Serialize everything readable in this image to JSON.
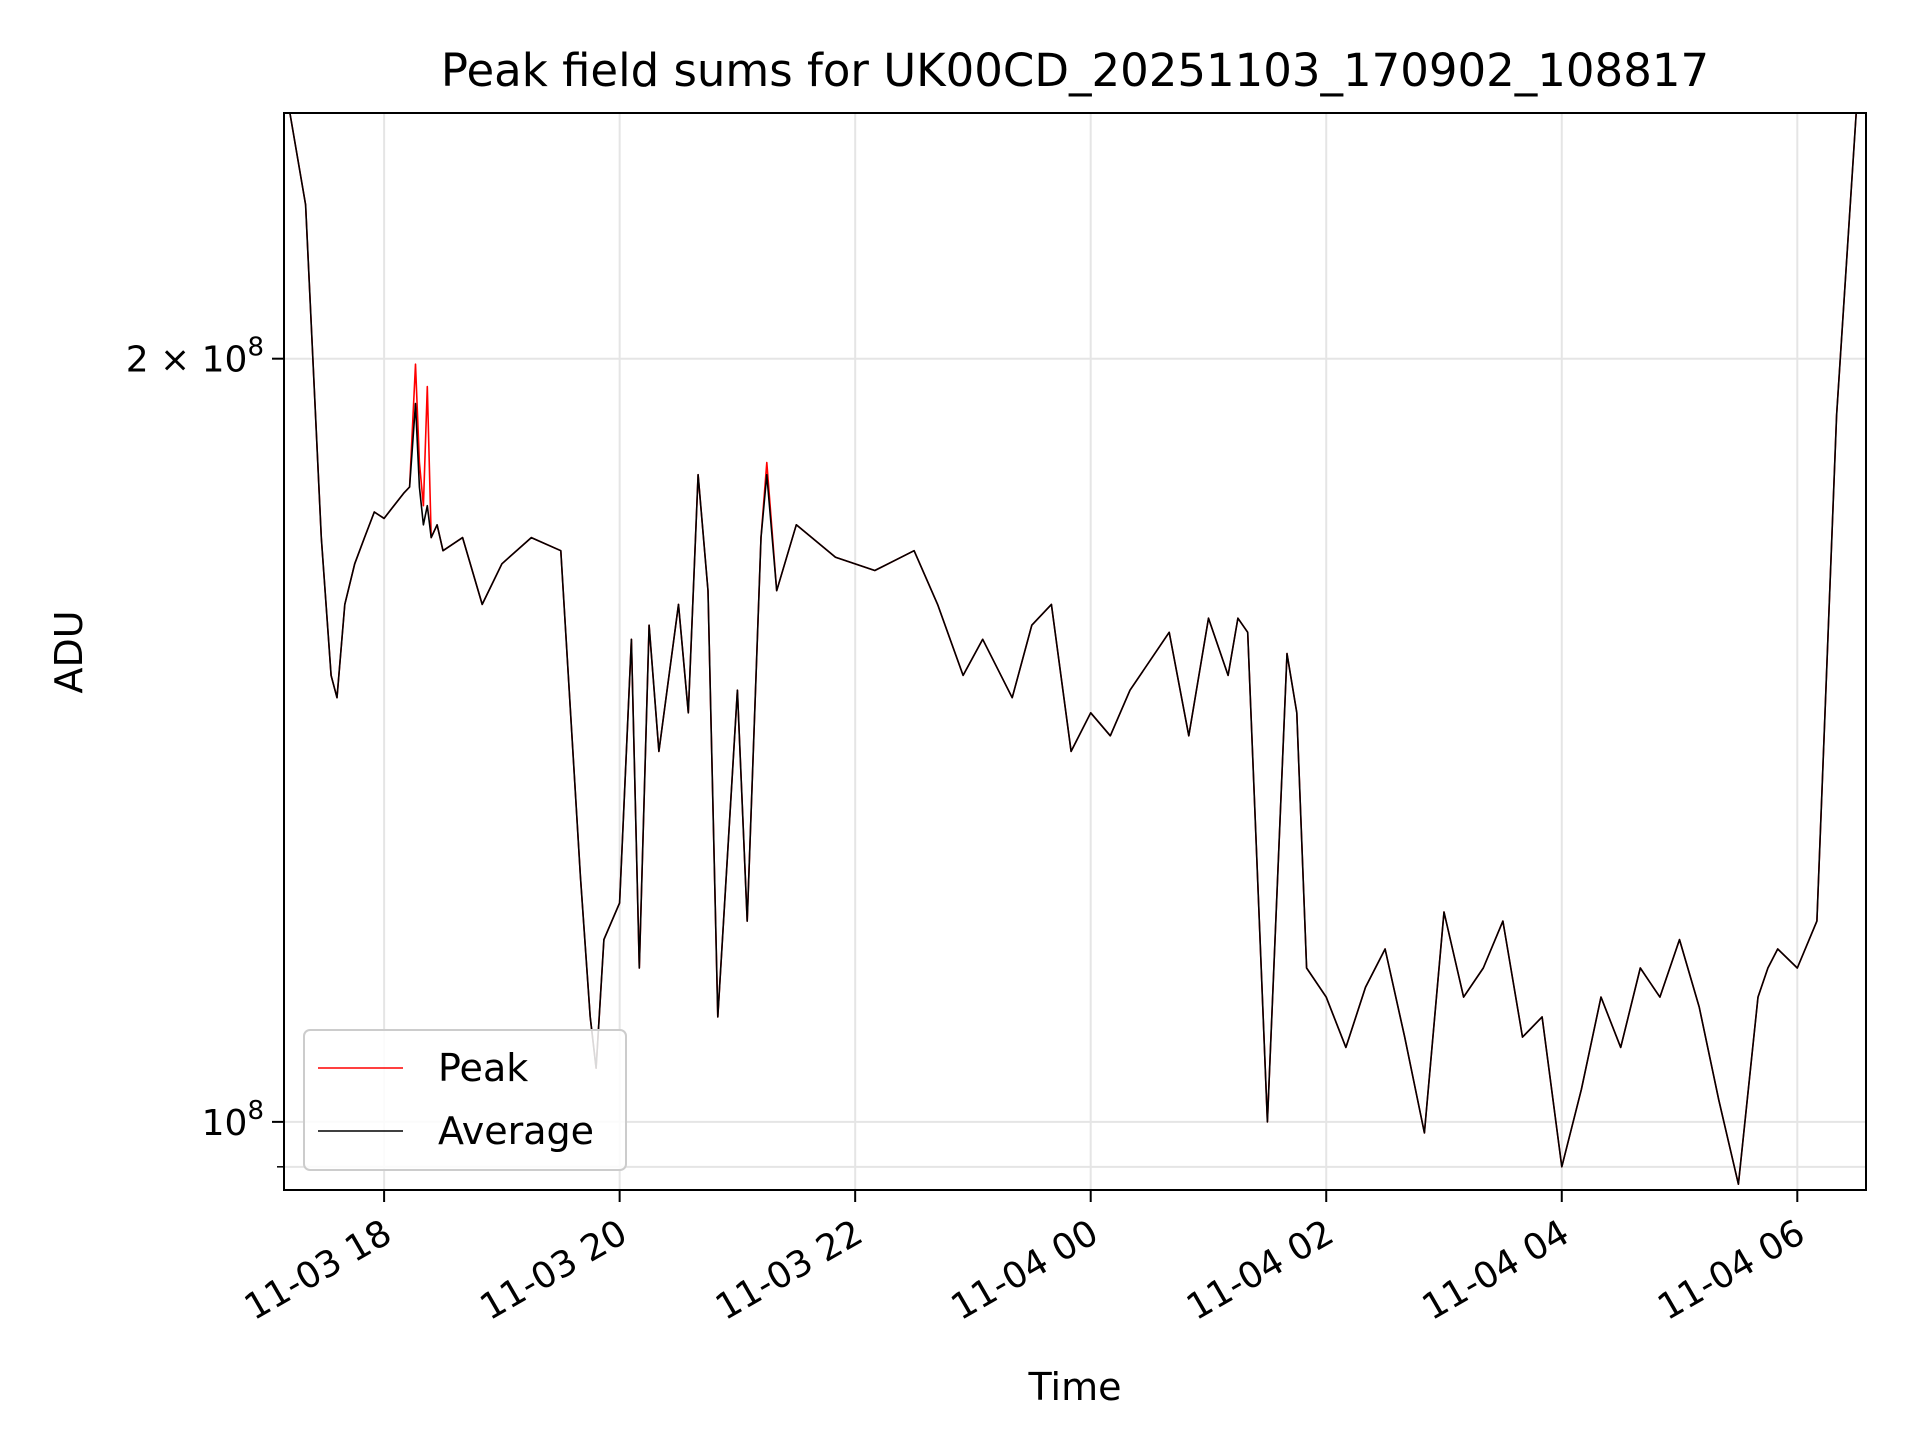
{
  "chart_data": {
    "type": "line",
    "title": "Peak field sums for UK00CD_20251103_170902_108817",
    "xlabel": "Time",
    "ylabel": "ADU",
    "yscale": "log",
    "grid": true,
    "legend_position": "lower-left",
    "xlim": [
      "2025-11-03 17:09",
      "2025-11-04 06:35"
    ],
    "ylim": [
      94000000,
      250000000
    ],
    "x_ticks": [
      "11-03 18",
      "11-03 20",
      "11-03 22",
      "11-04 00",
      "11-04 02",
      "11-04 04",
      "11-04 06"
    ],
    "y_ticks": [
      {
        "value": 100000000,
        "base": "10",
        "exp": "8",
        "mult": ""
      },
      {
        "value": 200000000,
        "base": "10",
        "exp": "8",
        "mult": "2 × "
      }
    ],
    "series": [
      {
        "name": "Peak",
        "color": "#ff0000",
        "x": [
          "2025-11-03 17:12",
          "2025-11-03 17:20",
          "2025-11-03 17:28",
          "2025-11-03 17:33",
          "2025-11-03 17:36",
          "2025-11-03 17:40",
          "2025-11-03 17:45",
          "2025-11-03 17:50",
          "2025-11-03 17:55",
          "2025-11-03 18:00",
          "2025-11-03 18:05",
          "2025-11-03 18:10",
          "2025-11-03 18:13",
          "2025-11-03 18:16",
          "2025-11-03 18:18",
          "2025-11-03 18:20",
          "2025-11-03 18:22",
          "2025-11-03 18:24",
          "2025-11-03 18:27",
          "2025-11-03 18:30",
          "2025-11-03 18:40",
          "2025-11-03 18:50",
          "2025-11-03 19:00",
          "2025-11-03 19:15",
          "2025-11-03 19:30",
          "2025-11-03 19:40",
          "2025-11-03 19:45",
          "2025-11-03 19:48",
          "2025-11-03 19:52",
          "2025-11-03 20:00",
          "2025-11-03 20:06",
          "2025-11-03 20:10",
          "2025-11-03 20:15",
          "2025-11-03 20:20",
          "2025-11-03 20:30",
          "2025-11-03 20:35",
          "2025-11-03 20:40",
          "2025-11-03 20:45",
          "2025-11-03 20:50",
          "2025-11-03 21:00",
          "2025-11-03 21:05",
          "2025-11-03 21:12",
          "2025-11-03 21:15",
          "2025-11-03 21:20",
          "2025-11-03 21:30",
          "2025-11-03 21:50",
          "2025-11-03 22:10",
          "2025-11-03 22:30",
          "2025-11-03 22:42",
          "2025-11-03 22:55",
          "2025-11-03 23:05",
          "2025-11-03 23:20",
          "2025-11-03 23:30",
          "2025-11-03 23:40",
          "2025-11-03 23:50",
          "2025-11-04 00:00",
          "2025-11-04 00:10",
          "2025-11-04 00:20",
          "2025-11-04 00:40",
          "2025-11-04 00:50",
          "2025-11-04 01:00",
          "2025-11-04 01:10",
          "2025-11-04 01:15",
          "2025-11-04 01:20",
          "2025-11-04 01:30",
          "2025-11-04 01:40",
          "2025-11-04 01:45",
          "2025-11-04 01:50",
          "2025-11-04 02:00",
          "2025-11-04 02:10",
          "2025-11-04 02:20",
          "2025-11-04 02:30",
          "2025-11-04 02:40",
          "2025-11-04 02:50",
          "2025-11-04 03:00",
          "2025-11-04 03:10",
          "2025-11-04 03:20",
          "2025-11-04 03:30",
          "2025-11-04 03:40",
          "2025-11-04 03:50",
          "2025-11-04 04:00",
          "2025-11-04 04:10",
          "2025-11-04 04:20",
          "2025-11-04 04:30",
          "2025-11-04 04:40",
          "2025-11-04 04:50",
          "2025-11-04 05:00",
          "2025-11-04 05:10",
          "2025-11-04 05:20",
          "2025-11-04 05:30",
          "2025-11-04 05:40",
          "2025-11-04 05:45",
          "2025-11-04 05:50",
          "2025-11-04 06:00",
          "2025-11-04 06:10",
          "2025-11-04 06:20",
          "2025-11-04 06:30"
        ],
        "values": [
          250000000,
          230000000,
          170000000,
          150000000,
          147000000,
          160000000,
          166000000,
          170000000,
          174000000,
          173000000,
          175000000,
          177000000,
          178000000,
          199000000,
          182000000,
          175000000,
          195000000,
          170000000,
          172000000,
          168000000,
          170000000,
          160000000,
          166000000,
          170000000,
          168000000,
          125000000,
          110000000,
          105000000,
          118000000,
          122000000,
          155000000,
          115000000,
          157000000,
          140000000,
          160000000,
          145000000,
          180000000,
          162000000,
          110000000,
          148000000,
          120000000,
          170000000,
          182000000,
          162000000,
          172000000,
          167000000,
          165000000,
          168000000,
          160000000,
          150000000,
          155000000,
          147000000,
          157000000,
          160000000,
          140000000,
          145000000,
          142000000,
          148000000,
          156000000,
          142000000,
          158000000,
          150000000,
          158000000,
          156000000,
          100000000,
          153000000,
          145000000,
          115000000,
          112000000,
          107000000,
          113000000,
          117000000,
          108000000,
          99000000,
          121000000,
          112000000,
          115000000,
          120000000,
          108000000,
          110000000,
          96000000,
          103000000,
          112000000,
          107000000,
          115000000,
          112000000,
          118000000,
          111000000,
          102000000,
          94500000,
          112000000,
          115000000,
          117000000,
          115000000,
          120000000,
          190000000,
          250000000
        ]
      },
      {
        "name": "Average",
        "color": "#000000",
        "x": [
          "2025-11-03 17:12",
          "2025-11-03 17:20",
          "2025-11-03 17:28",
          "2025-11-03 17:33",
          "2025-11-03 17:36",
          "2025-11-03 17:40",
          "2025-11-03 17:45",
          "2025-11-03 17:50",
          "2025-11-03 17:55",
          "2025-11-03 18:00",
          "2025-11-03 18:05",
          "2025-11-03 18:10",
          "2025-11-03 18:13",
          "2025-11-03 18:16",
          "2025-11-03 18:18",
          "2025-11-03 18:20",
          "2025-11-03 18:22",
          "2025-11-03 18:24",
          "2025-11-03 18:27",
          "2025-11-03 18:30",
          "2025-11-03 18:40",
          "2025-11-03 18:50",
          "2025-11-03 19:00",
          "2025-11-03 19:15",
          "2025-11-03 19:30",
          "2025-11-03 19:40",
          "2025-11-03 19:45",
          "2025-11-03 19:48",
          "2025-11-03 19:52",
          "2025-11-03 20:00",
          "2025-11-03 20:06",
          "2025-11-03 20:10",
          "2025-11-03 20:15",
          "2025-11-03 20:20",
          "2025-11-03 20:30",
          "2025-11-03 20:35",
          "2025-11-03 20:40",
          "2025-11-03 20:45",
          "2025-11-03 20:50",
          "2025-11-03 21:00",
          "2025-11-03 21:05",
          "2025-11-03 21:12",
          "2025-11-03 21:15",
          "2025-11-03 21:20",
          "2025-11-03 21:30",
          "2025-11-03 21:50",
          "2025-11-03 22:10",
          "2025-11-03 22:30",
          "2025-11-03 22:42",
          "2025-11-03 22:55",
          "2025-11-03 23:05",
          "2025-11-03 23:20",
          "2025-11-03 23:30",
          "2025-11-03 23:40",
          "2025-11-03 23:50",
          "2025-11-04 00:00",
          "2025-11-04 00:10",
          "2025-11-04 00:20",
          "2025-11-04 00:40",
          "2025-11-04 00:50",
          "2025-11-04 01:00",
          "2025-11-04 01:10",
          "2025-11-04 01:15",
          "2025-11-04 01:20",
          "2025-11-04 01:30",
          "2025-11-04 01:40",
          "2025-11-04 01:45",
          "2025-11-04 01:50",
          "2025-11-04 02:00",
          "2025-11-04 02:10",
          "2025-11-04 02:20",
          "2025-11-04 02:30",
          "2025-11-04 02:40",
          "2025-11-04 02:50",
          "2025-11-04 03:00",
          "2025-11-04 03:10",
          "2025-11-04 03:20",
          "2025-11-04 03:30",
          "2025-11-04 03:40",
          "2025-11-04 03:50",
          "2025-11-04 04:00",
          "2025-11-04 04:10",
          "2025-11-04 04:20",
          "2025-11-04 04:30",
          "2025-11-04 04:40",
          "2025-11-04 04:50",
          "2025-11-04 05:00",
          "2025-11-04 05:10",
          "2025-11-04 05:20",
          "2025-11-04 05:30",
          "2025-11-04 05:40",
          "2025-11-04 05:45",
          "2025-11-04 05:50",
          "2025-11-04 06:00",
          "2025-11-04 06:10",
          "2025-11-04 06:20",
          "2025-11-04 06:30"
        ],
        "values": [
          250000000,
          230000000,
          170000000,
          150000000,
          147000000,
          160000000,
          166000000,
          170000000,
          174000000,
          173000000,
          175000000,
          177000000,
          178000000,
          192000000,
          178000000,
          172000000,
          175000000,
          170000000,
          172000000,
          168000000,
          170000000,
          160000000,
          166000000,
          170000000,
          168000000,
          125000000,
          110000000,
          105000000,
          118000000,
          122000000,
          155000000,
          115000000,
          157000000,
          140000000,
          160000000,
          145000000,
          180000000,
          162000000,
          110000000,
          148000000,
          120000000,
          170000000,
          180000000,
          162000000,
          172000000,
          167000000,
          165000000,
          168000000,
          160000000,
          150000000,
          155000000,
          147000000,
          157000000,
          160000000,
          140000000,
          145000000,
          142000000,
          148000000,
          156000000,
          142000000,
          158000000,
          150000000,
          158000000,
          156000000,
          100000000,
          153000000,
          145000000,
          115000000,
          112000000,
          107000000,
          113000000,
          117000000,
          108000000,
          99000000,
          121000000,
          112000000,
          115000000,
          120000000,
          108000000,
          110000000,
          96000000,
          103000000,
          112000000,
          107000000,
          115000000,
          112000000,
          118000000,
          111000000,
          102000000,
          94500000,
          112000000,
          115000000,
          117000000,
          115000000,
          120000000,
          190000000,
          250000000
        ]
      }
    ]
  }
}
